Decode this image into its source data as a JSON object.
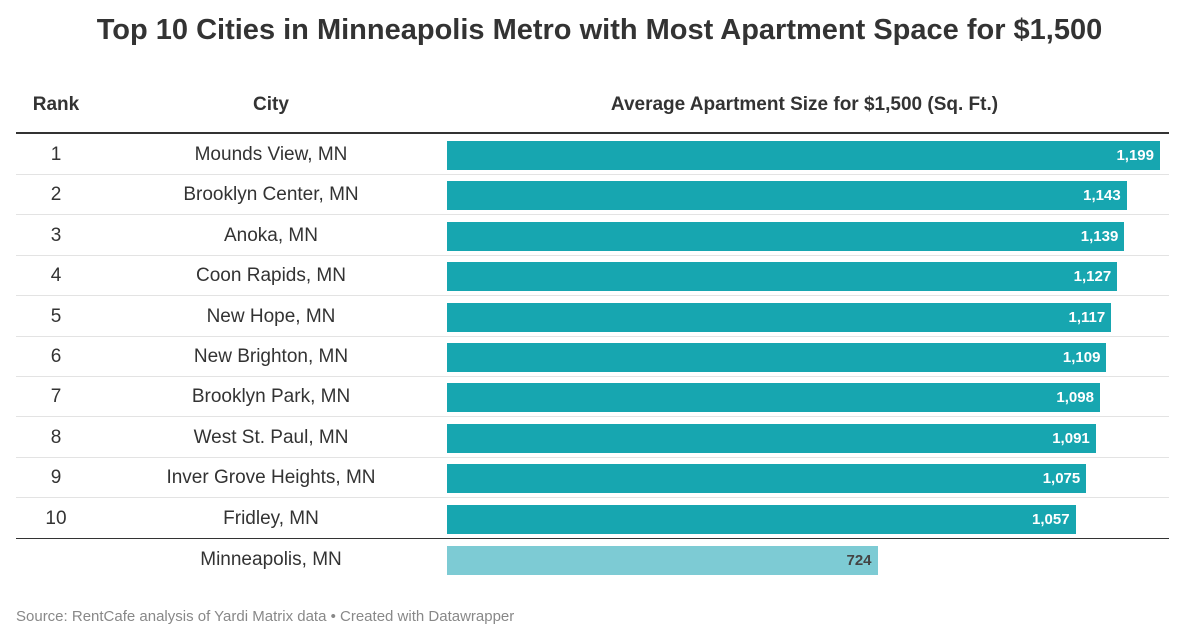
{
  "title": "Top 10 Cities in Minneapolis Metro with Most Apartment Space for $1,500",
  "headers": {
    "rank": "Rank",
    "city": "City",
    "size": "Average Apartment Size for $1,500 (Sq. Ft.)"
  },
  "footer": "Source: RentCafe analysis of Yardi Matrix data • Created with Datawrapper",
  "colors": {
    "bar": "#17a6b0",
    "bar_highlight": "#7dcbd4",
    "bar_label": "#ffffff",
    "bar_label_highlight": "#444444"
  },
  "chart_data": {
    "type": "bar",
    "orientation": "horizontal",
    "categories": [
      "Mounds View, MN",
      "Brooklyn Center, MN",
      "Anoka, MN",
      "Coon Rapids, MN",
      "New Hope, MN",
      "New Brighton, MN",
      "Brooklyn Park, MN",
      "West St. Paul, MN",
      "Inver Grove Heights, MN",
      "Fridley, MN",
      "Minneapolis, MN"
    ],
    "ranks": [
      "1",
      "2",
      "3",
      "4",
      "5",
      "6",
      "7",
      "8",
      "9",
      "10",
      ""
    ],
    "values": [
      1199,
      1143,
      1139,
      1127,
      1117,
      1109,
      1098,
      1091,
      1075,
      1057,
      724
    ],
    "labels": [
      "1,199",
      "1,143",
      "1,139",
      "1,127",
      "1,117",
      "1,109",
      "1,098",
      "1,091",
      "1,075",
      "1,057",
      "724"
    ],
    "xlim": [
      0,
      1199
    ],
    "grid": false,
    "legend": "none"
  }
}
